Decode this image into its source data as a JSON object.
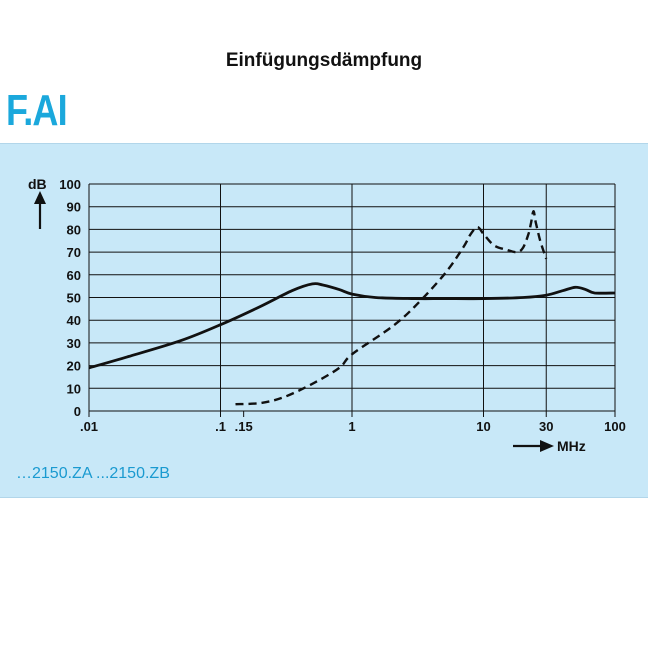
{
  "header": {
    "title": "Einfügungsdämpfung",
    "brand": "F.AI"
  },
  "footer": {
    "models": "…2150.ZA ...2150.ZB"
  },
  "chart_data": {
    "type": "line",
    "xlabel": "MHz",
    "ylabel": "dB",
    "xscale": "log",
    "xlim": [
      0.01,
      100
    ],
    "ylim": [
      0,
      100
    ],
    "x_ticks": [
      0.01,
      0.1,
      0.15,
      1,
      10,
      30,
      100
    ],
    "x_tick_labels": [
      ".01",
      ".1",
      ".15",
      "1",
      "10",
      "30",
      "100"
    ],
    "y_ticks": [
      0,
      10,
      20,
      30,
      40,
      50,
      60,
      70,
      80,
      90,
      100
    ],
    "y_tick_labels": [
      "0",
      "10",
      "20",
      "30",
      "40",
      "50",
      "60",
      "70",
      "80",
      "90",
      "100"
    ],
    "grid": true,
    "colors": {
      "line": "#111111",
      "panel": "#c8e8f8",
      "brand": "#1ba8dc"
    },
    "series": [
      {
        "style": "solid",
        "x": [
          0.01,
          0.02,
          0.05,
          0.1,
          0.2,
          0.35,
          0.5,
          0.6,
          0.8,
          1.0,
          1.5,
          3,
          5,
          10,
          20,
          30,
          40,
          50,
          60,
          70,
          100
        ],
        "y": [
          19,
          24,
          31,
          38,
          46,
          53,
          56,
          55.5,
          53.5,
          51.5,
          50,
          49.5,
          49.5,
          49.5,
          50,
          51,
          53,
          54.5,
          53.5,
          52,
          52
        ]
      },
      {
        "style": "dashed",
        "x": [
          0.13,
          0.2,
          0.3,
          0.5,
          0.8,
          1,
          2,
          3,
          5,
          7,
          8,
          9,
          10,
          12,
          15,
          18,
          20,
          22,
          23,
          24,
          25,
          27,
          30
        ],
        "y": [
          3,
          3.5,
          6,
          12,
          19,
          25,
          37,
          46,
          60,
          72,
          78,
          81,
          78,
          73,
          71,
          70,
          72,
          78,
          83,
          88,
          83,
          75,
          67
        ]
      }
    ]
  }
}
